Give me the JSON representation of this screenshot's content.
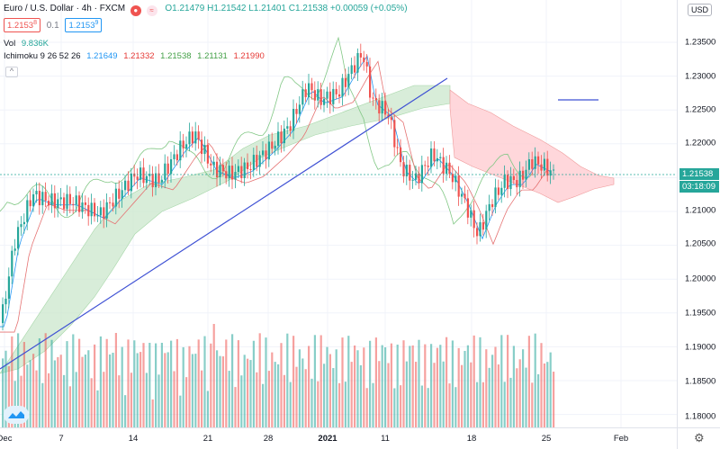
{
  "header": {
    "symbol_title": "Euro / U.S. Dollar · 4h · FXCM",
    "ohlc": {
      "o": "O1.21479",
      "h": "H1.21542",
      "l": "L1.21401",
      "c": "C1.21538",
      "chg": "+0.00059 (+0.05%)"
    },
    "sell_price": "1.2153",
    "sell_sup": "8",
    "spread": "0.1",
    "buy_price": "1.2153",
    "buy_sup": "9",
    "vol_label": "Vol",
    "vol_value": "9.836K",
    "ichimoku_label": "Ichimoku 9 26 52 26",
    "ichimoku_values": [
      "1.21649",
      "1.21332",
      "1.21538",
      "1.21131",
      "1.21990"
    ],
    "currency": "USD"
  },
  "price_axis": {
    "ticks": [
      "1.23500",
      "1.23000",
      "1.22500",
      "1.22000",
      "1.21500",
      "1.21000",
      "1.20500",
      "1.20000",
      "1.19500",
      "1.19000",
      "1.18500",
      "1.18000"
    ],
    "current_price": "1.21538",
    "countdown": "03:18:09"
  },
  "time_axis": {
    "ticks": [
      "Dec",
      "7",
      "14",
      "21",
      "28",
      "2021",
      "11",
      "18",
      "25",
      "Feb"
    ]
  },
  "colors": {
    "up": "#26a69a",
    "down": "#ef5350",
    "trendline": "#3f51d4",
    "cloud_bull": "#c8e6c9",
    "cloud_bear": "#ffcdd2",
    "tenkan": "#2196f3",
    "kijun": "#e57373",
    "chikou": "#81c784"
  }
}
